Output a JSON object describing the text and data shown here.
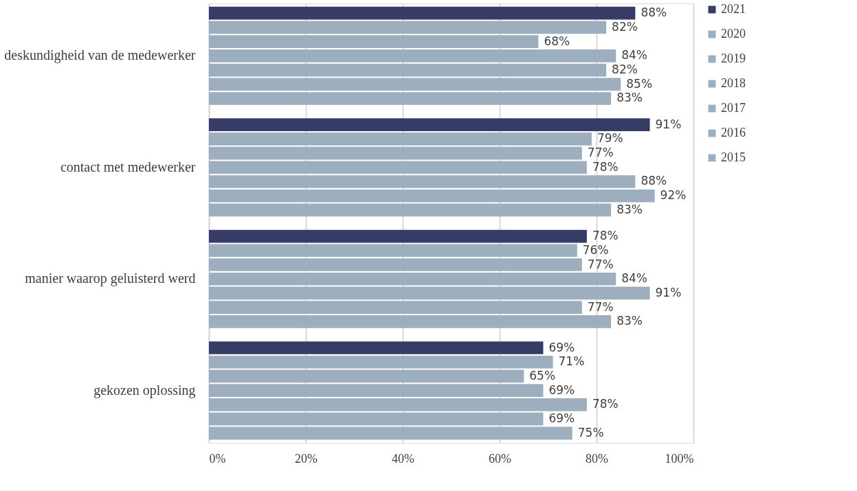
{
  "chart_data": {
    "type": "bar",
    "orientation": "horizontal",
    "categories": [
      "deskundigheid van de medewerker",
      "contact met medewerker",
      "manier waarop geluisterd werd",
      "gekozen oplossing"
    ],
    "series": [
      {
        "name": "2021",
        "color": "#363c66",
        "values": [
          88,
          91,
          78,
          69
        ],
        "value_labels": [
          "88%",
          "91%",
          "78%",
          "69%"
        ]
      },
      {
        "name": "2020",
        "color": "#9dafbe",
        "values": [
          82,
          79,
          76,
          71
        ],
        "value_labels": [
          "82%",
          "79%",
          "76%",
          "71%"
        ]
      },
      {
        "name": "2019",
        "color": "#9dafbe",
        "values": [
          68,
          77,
          77,
          65
        ],
        "value_labels": [
          "68%",
          "77%",
          "77%",
          "65%"
        ]
      },
      {
        "name": "2018",
        "color": "#9dafbe",
        "values": [
          84,
          78,
          84,
          69
        ],
        "value_labels": [
          "84%",
          "78%",
          "84%",
          "69%"
        ]
      },
      {
        "name": "2017",
        "color": "#9dafbe",
        "values": [
          82,
          88,
          91,
          78
        ],
        "value_labels": [
          "82%",
          "88%",
          "91%",
          "78%"
        ]
      },
      {
        "name": "2016",
        "color": "#9dafbe",
        "values": [
          85,
          92,
          77,
          69
        ],
        "value_labels": [
          "85%",
          "92%",
          "77%",
          "69%"
        ]
      },
      {
        "name": "2015",
        "color": "#9dafbe",
        "values": [
          83,
          83,
          83,
          75
        ],
        "value_labels": [
          "83%",
          "83%",
          "83%",
          "75%"
        ]
      }
    ],
    "xlim": [
      0,
      100
    ],
    "xticks": [
      {
        "value": 0,
        "label": "0%"
      },
      {
        "value": 20,
        "label": "20%"
      },
      {
        "value": 40,
        "label": "40%"
      },
      {
        "value": 60,
        "label": "60%"
      },
      {
        "value": 80,
        "label": "80%"
      },
      {
        "value": 100,
        "label": "100%"
      }
    ],
    "grid": "x",
    "legend": "right"
  }
}
